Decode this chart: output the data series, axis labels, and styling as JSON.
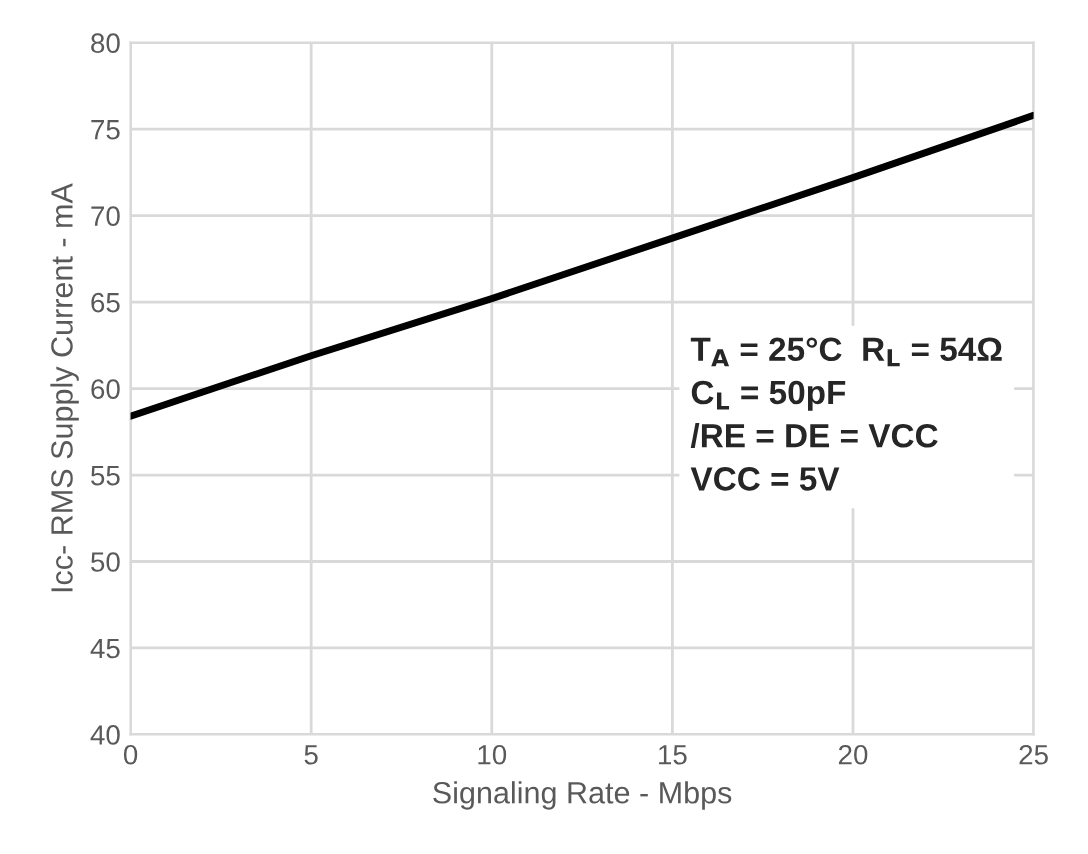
{
  "chart_data": {
    "type": "line",
    "xlabel": "Signaling Rate - Mbps",
    "ylabel": "Icc- RMS Supply Current - mA",
    "x": [
      0,
      5,
      10,
      15,
      20,
      25
    ],
    "series": [
      {
        "color": "#000000",
        "values": [
          58.4,
          61.9,
          65.2,
          68.7,
          72.2,
          75.8
        ]
      }
    ],
    "xlim": [
      0,
      25
    ],
    "xticks": [
      0,
      5,
      10,
      15,
      20,
      25
    ],
    "ylim": [
      40,
      80
    ],
    "yticks": [
      40,
      45,
      50,
      55,
      60,
      65,
      70,
      75,
      80
    ],
    "grid": true,
    "annotations": [
      "T$_{A}$ = 25°C  R$_{L}$ = 54Ω",
      "C$_{L}$ = 50pF",
      "/RE = DE = VCC",
      "VCC = 5V"
    ]
  }
}
